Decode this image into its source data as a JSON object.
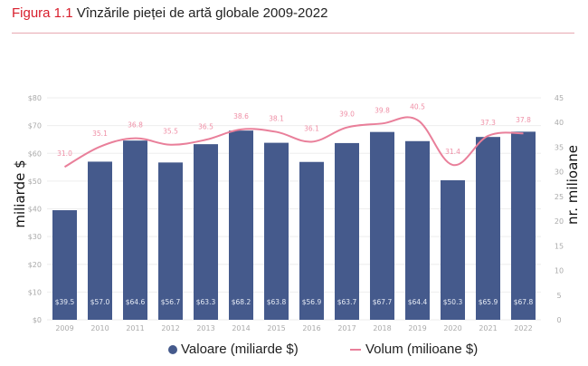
{
  "header": {
    "figure_label": "Figura 1.1",
    "title_text": "Vînzările pieței de artă globale 2009-2022"
  },
  "colors": {
    "bar": "#455a8c",
    "line": "#e97f9a",
    "label_line": "#ef8fa6",
    "figure_label": "#d81e2c",
    "grid": "#eeeeee",
    "tick": "#aaaaaa"
  },
  "chart_data": {
    "type": "bar+line",
    "title": "Vînzările pieței de artă globale 2009-2022",
    "categories": [
      "2009",
      "2010",
      "2011",
      "2012",
      "2013",
      "2014",
      "2015",
      "2016",
      "2017",
      "2018",
      "2019",
      "2020",
      "2021",
      "2022"
    ],
    "series": [
      {
        "name": "Valoare (miliarde $)",
        "type": "bar",
        "axis": "left",
        "values": [
          39.5,
          57.0,
          64.6,
          56.7,
          63.3,
          68.2,
          63.8,
          56.9,
          63.7,
          67.7,
          64.4,
          50.3,
          65.9,
          67.8
        ],
        "labels": [
          "$39.5",
          "$57.0",
          "$64.6",
          "$56.7",
          "$63.3",
          "$68.2",
          "$63.8",
          "$56.9",
          "$63.7",
          "$67.7",
          "$64.4",
          "$50.3",
          "$65.9",
          "$67.8"
        ]
      },
      {
        "name": "Volum (milioane $)",
        "type": "line",
        "axis": "right",
        "values": [
          31.0,
          35.1,
          36.8,
          35.5,
          36.5,
          38.6,
          38.1,
          36.1,
          39.0,
          39.8,
          40.5,
          31.4,
          37.3,
          37.8
        ],
        "labels": [
          "31.0",
          "35.1",
          "36.8",
          "35.5",
          "36.5",
          "38.6",
          "38.1",
          "36.1",
          "39.0",
          "39.8",
          "40.5",
          "31.4",
          "37.3",
          "37.8"
        ]
      }
    ],
    "y_left": {
      "label": "miliarde $",
      "range": [
        0,
        80
      ],
      "ticks": [
        "$0",
        "$10",
        "$20",
        "$30",
        "$40",
        "$50",
        "$60",
        "$70",
        "$80"
      ]
    },
    "y_right": {
      "label": "nr. milioane",
      "range": [
        0,
        45
      ],
      "ticks": [
        "0",
        "5",
        "10",
        "15",
        "20",
        "25",
        "30",
        "35",
        "40",
        "45"
      ]
    },
    "grid": true,
    "legend_position": "bottom"
  },
  "legend": {
    "bar_label": "Valoare (miliarde $)",
    "line_label": "Volum (milioane $)"
  }
}
